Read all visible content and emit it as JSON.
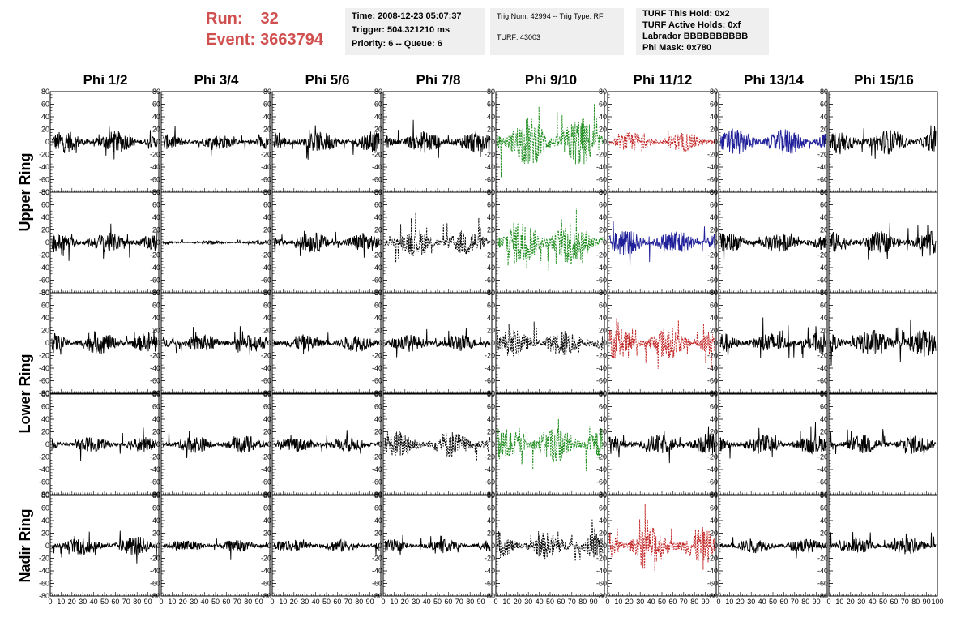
{
  "header": {
    "run_label": "Run:",
    "run_value": "32",
    "event_label": "Event:",
    "event_value": "3663794",
    "box1": [
      "Time: 2008-12-23 05:07:37",
      "Trigger: 504.321210 ms",
      "Priority: 6 -- Queue: 6"
    ],
    "box2": [
      "Trig Num: 42994 -- Trig Type: RF",
      "",
      "TURF: 43003"
    ],
    "box3": [
      "TURF This Hold: 0x2",
      "TURF Active Holds: 0xf",
      "Labrador BBBBBBBBBB",
      "Phi Mask: 0x780"
    ]
  },
  "chart_data": {
    "type": "line",
    "columns": [
      "Phi 1/2",
      "Phi 3/4",
      "Phi 5/6",
      "Phi 7/8",
      "Phi 9/10",
      "Phi 11/12",
      "Phi 13/14",
      "Phi 15/16"
    ],
    "row_groups": [
      "Upper Ring",
      "Lower Ring",
      "Nadir Ring"
    ],
    "rows": 5,
    "xlim": [
      0,
      100
    ],
    "ylim": [
      -80,
      80
    ],
    "x_ticks": [
      0,
      10,
      20,
      30,
      40,
      50,
      60,
      70,
      80,
      90
    ],
    "x_ticks_last": [
      0,
      10,
      20,
      30,
      40,
      50,
      60,
      70,
      80,
      90,
      100
    ],
    "y_ticks": [
      80,
      60,
      40,
      20,
      0,
      -20,
      -40,
      -60,
      -80
    ],
    "colors": {
      "normal": "#000000",
      "green": "#1a8a1a",
      "red": "#c02020",
      "blue": "#20209a"
    },
    "panels": [
      [
        "normal",
        "normal",
        "normal",
        "normal",
        "green",
        "red",
        "blue",
        "normal"
      ],
      [
        "normal",
        "normal",
        "normal",
        "dashed",
        "green",
        "blue",
        "normal",
        "normal"
      ],
      [
        "normal",
        "normal",
        "normal",
        "normal",
        "dashed",
        "red",
        "normal",
        "normal"
      ],
      [
        "normal",
        "normal",
        "normal",
        "dashed",
        "green",
        "normal",
        "normal",
        "normal"
      ],
      [
        "normal",
        "normal",
        "normal",
        "normal",
        "dashed",
        "red",
        "normal",
        "normal"
      ]
    ],
    "amplitudes": [
      [
        18,
        12,
        16,
        18,
        40,
        16,
        22,
        20
      ],
      [
        16,
        3,
        16,
        22,
        38,
        22,
        16,
        18
      ],
      [
        18,
        14,
        14,
        14,
        22,
        26,
        18,
        22
      ],
      [
        12,
        14,
        12,
        22,
        30,
        16,
        16,
        16
      ],
      [
        16,
        10,
        10,
        10,
        22,
        30,
        12,
        14
      ]
    ]
  }
}
